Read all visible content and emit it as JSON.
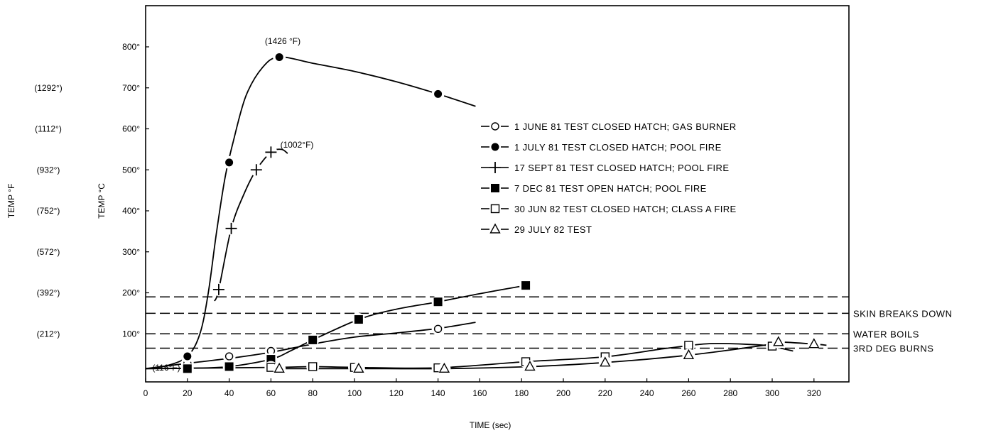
{
  "chart_data": {
    "type": "line",
    "xlabel": "TIME (sec)",
    "ylabel_c": "TEMP °C",
    "ylabel_f": "TEMP °F",
    "xlim": [
      0,
      340
    ],
    "ylim": [
      0,
      860
    ],
    "x_ticks": [
      0,
      20,
      40,
      60,
      80,
      100,
      120,
      140,
      160,
      180,
      200,
      220,
      240,
      260,
      280,
      300,
      320
    ],
    "y_ticks": [
      {
        "value": 100,
        "c": "100°",
        "f": "(212°)"
      },
      {
        "value": 200,
        "c": "200°",
        "f": "(392°)"
      },
      {
        "value": 300,
        "c": "300°",
        "f": "(572°)"
      },
      {
        "value": 400,
        "c": "400°",
        "f": "(752°)"
      },
      {
        "value": 500,
        "c": "500°",
        "f": "(932°)"
      },
      {
        "value": 600,
        "c": "600°",
        "f": "(1112°)"
      },
      {
        "value": 700,
        "c": "700°",
        "f": "(1292°)"
      },
      {
        "value": 800,
        "c": "800°",
        "f": ""
      }
    ],
    "reference_lines": [
      {
        "y": 190,
        "label": ""
      },
      {
        "y": 150,
        "label": "SKIN BREAKS DOWN"
      },
      {
        "y": 100,
        "label": "WATER BOILS"
      },
      {
        "y": 65,
        "label": "3RD DEG BURNS"
      }
    ],
    "annotations": [
      {
        "text": "(1426 °F)",
        "x": 65,
        "y": 775
      },
      {
        "text": "(1002°F)",
        "x": 65,
        "y": 545
      },
      {
        "text": "(116°F)",
        "x": 20,
        "y": 45
      }
    ],
    "legend_position": "right",
    "series": [
      {
        "name": "1 JUNE 81 TEST CLOSED HATCH; GAS BURNER",
        "marker": "circle-open",
        "x": [
          20,
          40,
          60,
          140
        ],
        "y": [
          28,
          45,
          58,
          112
        ],
        "curve_x": [
          0,
          20,
          40,
          60,
          80,
          100,
          120,
          140,
          158
        ],
        "curve_y": [
          15,
          28,
          40,
          55,
          75,
          92,
          102,
          113,
          128
        ]
      },
      {
        "name": "1 JULY 81 TEST CLOSED HATCH; POOL FIRE",
        "marker": "circle-filled",
        "x": [
          20,
          40,
          64,
          140
        ],
        "y": [
          45,
          518,
          775,
          685
        ],
        "curve_x": [
          0,
          10,
          20,
          26,
          30,
          34,
          38,
          42,
          48,
          56,
          64,
          80,
          100,
          120,
          140,
          158
        ],
        "curve_y": [
          15,
          22,
          45,
          100,
          200,
          350,
          480,
          570,
          680,
          750,
          775,
          760,
          740,
          715,
          685,
          655
        ]
      },
      {
        "name": "17 SEPT 81 TEST CLOSED HATCH; POOL FIRE",
        "marker": "plus",
        "x": [
          35,
          41,
          53,
          60
        ],
        "y": [
          208,
          357,
          500,
          543
        ],
        "curve_x": [
          33,
          35,
          41,
          47,
          53,
          60,
          65,
          68
        ],
        "curve_y": [
          180,
          208,
          357,
          440,
          500,
          543,
          550,
          540
        ]
      },
      {
        "name": "7 DEC 81 TEST OPEN HATCH; POOL FIRE",
        "marker": "square-filled",
        "x": [
          20,
          40,
          60,
          80,
          102,
          140,
          182
        ],
        "y": [
          15,
          20,
          38,
          85,
          135,
          178,
          218
        ],
        "curve_x": [
          0,
          20,
          40,
          60,
          70,
          80,
          102,
          120,
          140,
          160,
          182
        ],
        "curve_y": [
          15,
          16,
          20,
          38,
          60,
          85,
          135,
          160,
          178,
          198,
          218
        ]
      },
      {
        "name": "30 JUN 82 TEST CLOSED HATCH; CLASS A FIRE",
        "marker": "square-open",
        "x": [
          60,
          80,
          100,
          140,
          182,
          220,
          260,
          300
        ],
        "y": [
          18,
          20,
          18,
          17,
          32,
          44,
          72,
          70
        ],
        "curve_x": [
          0,
          60,
          80,
          100,
          140,
          182,
          220,
          250,
          270,
          290,
          300,
          304,
          310
        ],
        "curve_y": [
          15,
          18,
          20,
          18,
          17,
          32,
          44,
          65,
          76,
          74,
          70,
          65,
          58
        ]
      },
      {
        "name": "29 JULY 82 TEST",
        "marker": "triangle-open",
        "x": [
          64,
          102,
          143,
          184,
          220,
          260,
          303,
          320
        ],
        "y": [
          15,
          15,
          15,
          20,
          30,
          48,
          80,
          75
        ],
        "curve_x": [
          64,
          102,
          143,
          184,
          220,
          260,
          300,
          303,
          320,
          326
        ],
        "curve_y": [
          15,
          15,
          15,
          20,
          30,
          48,
          75,
          80,
          75,
          72
        ]
      }
    ]
  }
}
